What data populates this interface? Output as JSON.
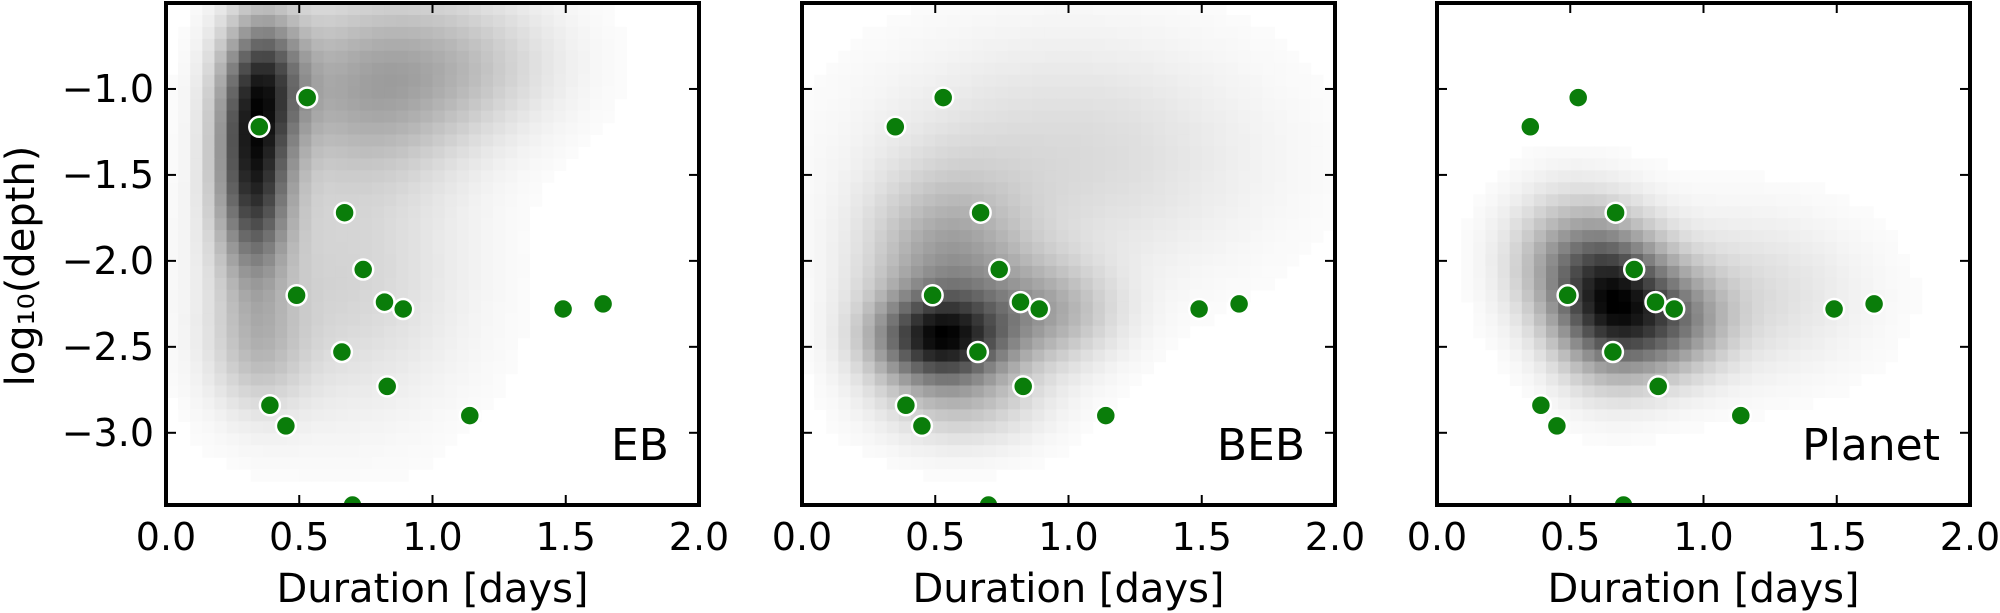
{
  "chart_data": {
    "type": "scatter",
    "description_kind": "density-heatmap with scatter overlay, three panels sharing y axis",
    "xlabel": "Duration [days]",
    "ylabel": "log₁₀(depth)",
    "xlim": [
      0.0,
      2.0
    ],
    "ylim": [
      -3.42,
      -0.5
    ],
    "x_ticks": [
      "0.0",
      "0.5",
      "1.0",
      "1.5",
      "2.0"
    ],
    "x_tick_values": [
      0.0,
      0.5,
      1.0,
      1.5,
      2.0
    ],
    "y_ticks": [
      "−1.0",
      "−1.5",
      "−2.0",
      "−2.5",
      "−3.0"
    ],
    "y_tick_values": [
      -1.0,
      -1.5,
      -2.0,
      -2.5,
      -3.0
    ],
    "point_color": "#0a7d0a",
    "point_edge_color": "#ffffff",
    "points": [
      {
        "x": 0.35,
        "y": -1.22
      },
      {
        "x": 0.53,
        "y": -1.05
      },
      {
        "x": 0.67,
        "y": -1.72
      },
      {
        "x": 0.74,
        "y": -2.05
      },
      {
        "x": 0.49,
        "y": -2.2
      },
      {
        "x": 0.82,
        "y": -2.24
      },
      {
        "x": 0.89,
        "y": -2.28
      },
      {
        "x": 0.66,
        "y": -2.53
      },
      {
        "x": 0.83,
        "y": -2.73
      },
      {
        "x": 0.39,
        "y": -2.84
      },
      {
        "x": 0.45,
        "y": -2.96
      },
      {
        "x": 1.14,
        "y": -2.9
      },
      {
        "x": 0.7,
        "y": -3.42
      },
      {
        "x": 1.49,
        "y": -2.28
      },
      {
        "x": 1.64,
        "y": -2.25
      }
    ],
    "panels": [
      {
        "label": "EB",
        "density_blobs": [
          {
            "x": 0.33,
            "y": -1.45,
            "sx": 0.09,
            "sy": 0.42,
            "w": 1.0
          },
          {
            "x": 0.38,
            "y": -0.95,
            "sx": 0.1,
            "sy": 0.25,
            "w": 0.55
          },
          {
            "x": 0.75,
            "y": -1.0,
            "sx": 0.25,
            "sy": 0.35,
            "w": 0.32
          },
          {
            "x": 1.1,
            "y": -0.85,
            "sx": 0.25,
            "sy": 0.28,
            "w": 0.18
          },
          {
            "x": 0.65,
            "y": -2.1,
            "sx": 0.3,
            "sy": 0.5,
            "w": 0.15
          },
          {
            "x": 0.35,
            "y": -2.5,
            "sx": 0.12,
            "sy": 0.25,
            "w": 0.2
          }
        ]
      },
      {
        "label": "BEB",
        "density_blobs": [
          {
            "x": 0.52,
            "y": -2.45,
            "sx": 0.16,
            "sy": 0.17,
            "w": 1.0
          },
          {
            "x": 0.55,
            "y": -2.05,
            "sx": 0.2,
            "sy": 0.35,
            "w": 0.4
          },
          {
            "x": 0.9,
            "y": -2.3,
            "sx": 0.18,
            "sy": 0.2,
            "w": 0.32
          },
          {
            "x": 1.0,
            "y": -1.4,
            "sx": 0.45,
            "sy": 0.45,
            "w": 0.13
          },
          {
            "x": 0.6,
            "y": -2.8,
            "sx": 0.2,
            "sy": 0.18,
            "w": 0.2
          }
        ]
      },
      {
        "label": "Planet",
        "density_blobs": [
          {
            "x": 0.66,
            "y": -2.25,
            "sx": 0.14,
            "sy": 0.26,
            "w": 1.0
          },
          {
            "x": 0.88,
            "y": -2.35,
            "sx": 0.14,
            "sy": 0.2,
            "w": 0.45
          },
          {
            "x": 0.5,
            "y": -2.0,
            "sx": 0.15,
            "sy": 0.25,
            "w": 0.35
          },
          {
            "x": 1.15,
            "y": -2.2,
            "sx": 0.28,
            "sy": 0.3,
            "w": 0.12
          }
        ]
      }
    ]
  }
}
